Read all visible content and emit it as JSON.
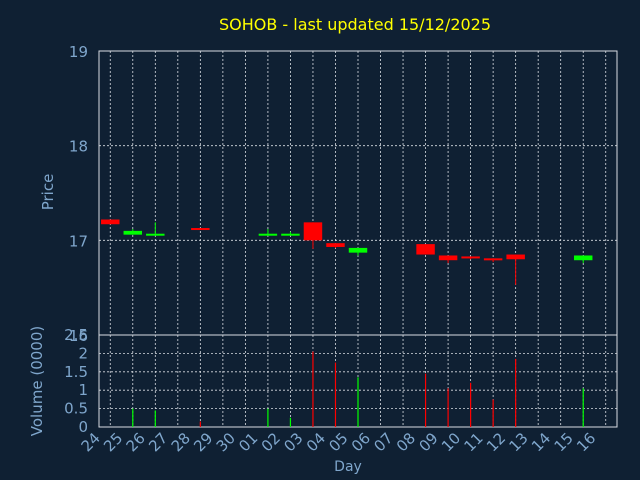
{
  "title": "SOHOB - last updated 15/12/2025",
  "colors": {
    "background": "#0f2033",
    "title": "#ffff00",
    "axis_text": "#7fa6cc",
    "grid": "#d9dde3",
    "up": "#00ff00",
    "down": "#ff0000"
  },
  "chart_data": [
    {
      "type": "candlestick",
      "ylabel": "Price",
      "ylim": [
        16,
        19
      ],
      "yticks": [
        16,
        17,
        18,
        19
      ],
      "grid": true,
      "days": [
        "24",
        "25",
        "26",
        "27",
        "28",
        "29",
        "30",
        "01",
        "02",
        "03",
        "04",
        "05",
        "06",
        "07",
        "08",
        "09",
        "10",
        "11",
        "12",
        "13",
        "14",
        "15",
        "16"
      ],
      "candles": [
        {
          "day": "24",
          "open": 17.22,
          "close": 17.17,
          "high": 17.22,
          "low": 17.17,
          "dir": "down"
        },
        {
          "day": "25",
          "open": 17.06,
          "close": 17.1,
          "high": 17.12,
          "low": 17.06,
          "dir": "up"
        },
        {
          "day": "26",
          "open": 17.06,
          "close": 17.07,
          "high": 17.19,
          "low": 17.06,
          "dir": "up"
        },
        {
          "day": "28",
          "open": 17.13,
          "close": 17.11,
          "high": 17.13,
          "low": 17.11,
          "dir": "down"
        },
        {
          "day": "01",
          "open": 17.06,
          "close": 17.07,
          "high": 17.12,
          "low": 17.05,
          "dir": "up"
        },
        {
          "day": "02",
          "open": 17.06,
          "close": 17.07,
          "high": 17.09,
          "low": 17.05,
          "dir": "up"
        },
        {
          "day": "03",
          "open": 17.19,
          "close": 17.0,
          "high": 17.19,
          "low": 16.91,
          "dir": "down"
        },
        {
          "day": "04",
          "open": 16.97,
          "close": 16.93,
          "high": 16.97,
          "low": 16.92,
          "dir": "down"
        },
        {
          "day": "05",
          "open": 16.87,
          "close": 16.92,
          "high": 16.92,
          "low": 16.84,
          "dir": "up"
        },
        {
          "day": "08",
          "open": 16.96,
          "close": 16.85,
          "high": 16.96,
          "low": 16.85,
          "dir": "down"
        },
        {
          "day": "09",
          "open": 16.84,
          "close": 16.79,
          "high": 16.84,
          "low": 16.76,
          "dir": "down"
        },
        {
          "day": "10",
          "open": 16.83,
          "close": 16.81,
          "high": 16.83,
          "low": 16.8,
          "dir": "down"
        },
        {
          "day": "11",
          "open": 16.81,
          "close": 16.79,
          "high": 16.81,
          "low": 16.77,
          "dir": "down"
        },
        {
          "day": "12",
          "open": 16.85,
          "close": 16.8,
          "high": 16.85,
          "low": 16.53,
          "dir": "down"
        },
        {
          "day": "15",
          "open": 16.79,
          "close": 16.84,
          "high": 16.84,
          "low": 16.76,
          "dir": "up"
        }
      ]
    },
    {
      "type": "bar",
      "ylabel": "Volume (0000)",
      "xlabel": "Day",
      "ylim": [
        0,
        2.5
      ],
      "yticks": [
        "0",
        "0.5",
        "1",
        "1.5",
        "2",
        "2.5"
      ],
      "grid": true,
      "categories": [
        "24",
        "25",
        "26",
        "27",
        "28",
        "29",
        "30",
        "01",
        "02",
        "03",
        "04",
        "05",
        "06",
        "07",
        "08",
        "09",
        "10",
        "11",
        "12",
        "13",
        "14",
        "15",
        "16"
      ],
      "volumes": [
        {
          "day": "25",
          "value": 0.5,
          "dir": "up"
        },
        {
          "day": "26",
          "value": 0.45,
          "dir": "up"
        },
        {
          "day": "28",
          "value": 0.15,
          "dir": "down"
        },
        {
          "day": "01",
          "value": 0.5,
          "dir": "up"
        },
        {
          "day": "02",
          "value": 0.25,
          "dir": "up"
        },
        {
          "day": "03",
          "value": 2.05,
          "dir": "down"
        },
        {
          "day": "04",
          "value": 1.75,
          "dir": "down"
        },
        {
          "day": "05",
          "value": 1.35,
          "dir": "up"
        },
        {
          "day": "08",
          "value": 1.45,
          "dir": "down"
        },
        {
          "day": "09",
          "value": 1.05,
          "dir": "down"
        },
        {
          "day": "10",
          "value": 1.2,
          "dir": "down"
        },
        {
          "day": "11",
          "value": 0.75,
          "dir": "down"
        },
        {
          "day": "12",
          "value": 1.85,
          "dir": "down"
        },
        {
          "day": "15",
          "value": 1.05,
          "dir": "up"
        }
      ]
    }
  ]
}
